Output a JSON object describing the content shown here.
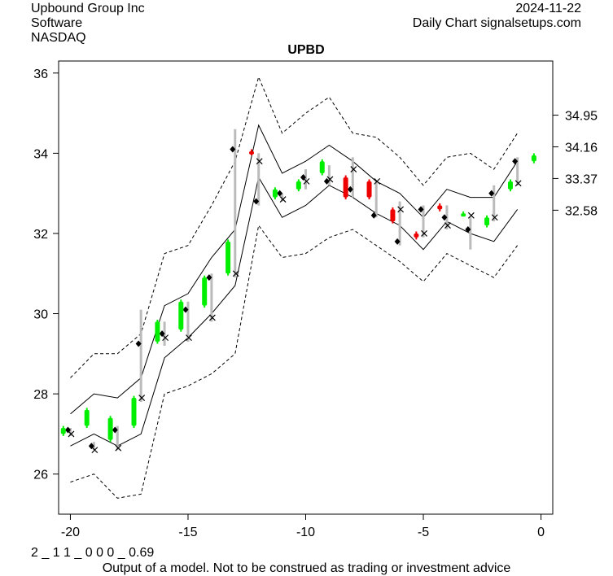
{
  "header": {
    "company": "Upbound Group Inc",
    "sector": "Software",
    "exchange": "NASDAQ",
    "date": "2024-11-22",
    "chart_kind": "Daily Chart signalsetups.com"
  },
  "footer": {
    "code": "2 _ 1 1 _ 0 0 0 _ 0.69",
    "disclaimer": "Output of a model. Not to be construed as trading or investment advice"
  },
  "chart_data": {
    "type": "line",
    "title": "UPBD",
    "xlim": [
      -20.5,
      0.5
    ],
    "ylim": [
      25.0,
      36.3
    ],
    "x_ticks": [
      -20,
      -15,
      -10,
      -5,
      0
    ],
    "y_ticks_left": [
      26,
      28,
      30,
      32,
      34,
      36
    ],
    "y_ticks_right": [
      34.95,
      34.16,
      33.37,
      32.58
    ],
    "colors": {
      "up": "#00ee00",
      "down": "#ee0000",
      "range": "#bbbbbb",
      "band": "#000000"
    },
    "bands": {
      "x": [
        -20,
        -19,
        -18,
        -17,
        -16,
        -15,
        -14,
        -13,
        -12,
        -11,
        -10,
        -9,
        -8,
        -7,
        -6,
        -5,
        -4,
        -3,
        -2,
        -1
      ],
      "upper_outer": [
        28.4,
        29.0,
        29.0,
        29.5,
        31.5,
        31.7,
        32.7,
        33.8,
        35.9,
        34.5,
        35.0,
        35.4,
        34.5,
        34.4,
        33.9,
        33.2,
        33.9,
        34.0,
        33.6,
        34.5
      ],
      "upper_inner": [
        27.5,
        28.0,
        27.9,
        28.4,
        30.2,
        30.5,
        31.4,
        32.1,
        34.7,
        33.5,
        33.8,
        34.2,
        33.8,
        33.3,
        33.0,
        32.4,
        33.1,
        32.9,
        32.9,
        33.8
      ],
      "lower_inner": [
        26.7,
        27.0,
        26.7,
        27.0,
        28.9,
        29.4,
        30.0,
        30.7,
        33.4,
        32.4,
        32.7,
        33.2,
        32.9,
        32.5,
        32.2,
        31.6,
        32.3,
        32.0,
        31.8,
        32.6
      ],
      "lower_outer": [
        25.8,
        26.0,
        25.4,
        25.5,
        28.0,
        28.2,
        28.5,
        29.0,
        32.2,
        31.4,
        31.5,
        31.9,
        32.1,
        31.7,
        31.3,
        30.8,
        31.5,
        31.2,
        30.9,
        31.7
      ]
    },
    "bars": [
      {
        "x": -20.3,
        "o": 27.0,
        "c": 27.15,
        "h": 27.2,
        "l": 26.95
      },
      {
        "x": -19.3,
        "o": 27.2,
        "c": 27.6,
        "h": 27.65,
        "l": 27.15
      },
      {
        "x": -18.3,
        "o": 26.85,
        "c": 27.4,
        "h": 27.45,
        "l": 26.8
      },
      {
        "x": -17.3,
        "o": 27.2,
        "c": 27.9,
        "h": 27.95,
        "l": 27.15
      },
      {
        "x": -16.3,
        "o": 29.3,
        "c": 29.8,
        "h": 29.85,
        "l": 29.25
      },
      {
        "x": -15.3,
        "o": 29.6,
        "c": 30.3,
        "h": 30.35,
        "l": 29.55
      },
      {
        "x": -14.3,
        "o": 30.2,
        "c": 30.9,
        "h": 30.95,
        "l": 30.15
      },
      {
        "x": -13.3,
        "o": 31.0,
        "c": 31.8,
        "h": 31.85,
        "l": 30.95
      },
      {
        "x": -12.3,
        "o": 34.05,
        "c": 34.0,
        "h": 34.1,
        "l": 33.95
      },
      {
        "x": -11.3,
        "o": 32.9,
        "c": 33.1,
        "h": 33.15,
        "l": 32.85
      },
      {
        "x": -10.3,
        "o": 33.1,
        "c": 33.3,
        "h": 33.35,
        "l": 33.05
      },
      {
        "x": -9.3,
        "o": 33.5,
        "c": 33.8,
        "h": 33.85,
        "l": 33.45
      },
      {
        "x": -8.3,
        "o": 33.4,
        "c": 32.9,
        "h": 33.45,
        "l": 32.85
      },
      {
        "x": -7.3,
        "o": 33.3,
        "c": 32.9,
        "h": 33.35,
        "l": 32.85
      },
      {
        "x": -6.3,
        "o": 32.6,
        "c": 32.3,
        "h": 32.65,
        "l": 32.25
      },
      {
        "x": -5.3,
        "o": 32.0,
        "c": 31.9,
        "h": 32.05,
        "l": 31.85
      },
      {
        "x": -4.3,
        "o": 32.7,
        "c": 32.6,
        "h": 32.75,
        "l": 32.55
      },
      {
        "x": -3.3,
        "o": 32.5,
        "c": 32.5,
        "h": 32.55,
        "l": 32.45
      },
      {
        "x": -2.3,
        "o": 32.2,
        "c": 32.4,
        "h": 32.45,
        "l": 32.15
      },
      {
        "x": -1.3,
        "o": 33.1,
        "c": 33.3,
        "h": 33.35,
        "l": 33.05
      },
      {
        "x": -0.3,
        "o": 33.8,
        "c": 33.95,
        "h": 34.0,
        "l": 33.75
      }
    ],
    "ranges": [
      {
        "x": -20,
        "h": 27.15,
        "l": 26.95,
        "d": 27.1,
        "m": 27.0
      },
      {
        "x": -19,
        "h": 26.8,
        "l": 26.6,
        "d": 26.7,
        "m": 26.6
      },
      {
        "x": -18,
        "h": 27.2,
        "l": 26.6,
        "d": 27.1,
        "m": 26.65
      },
      {
        "x": -17,
        "h": 30.1,
        "l": 27.8,
        "d": 29.25,
        "m": 27.9
      },
      {
        "x": -16,
        "h": 29.8,
        "l": 29.2,
        "d": 29.5,
        "m": 29.4
      },
      {
        "x": -15,
        "h": 30.3,
        "l": 29.3,
        "d": 30.1,
        "m": 29.4
      },
      {
        "x": -14,
        "h": 31.0,
        "l": 29.8,
        "d": 30.9,
        "m": 29.9
      },
      {
        "x": -13,
        "h": 34.6,
        "l": 30.9,
        "d": 34.1,
        "m": 31.0
      },
      {
        "x": -12,
        "h": 34.0,
        "l": 32.7,
        "d": 32.8,
        "m": 33.8
      },
      {
        "x": -11,
        "h": 33.0,
        "l": 32.8,
        "d": 33.0,
        "m": 32.85
      },
      {
        "x": -10,
        "h": 33.6,
        "l": 33.1,
        "d": 33.4,
        "m": 33.3
      },
      {
        "x": -9,
        "h": 33.7,
        "l": 33.2,
        "d": 33.3,
        "m": 33.35
      },
      {
        "x": -8,
        "h": 33.9,
        "l": 32.9,
        "d": 33.1,
        "m": 33.6
      },
      {
        "x": -7,
        "h": 33.3,
        "l": 32.4,
        "d": 32.45,
        "m": 33.3
      },
      {
        "x": -6,
        "h": 32.8,
        "l": 31.7,
        "d": 31.8,
        "m": 32.6
      },
      {
        "x": -5,
        "h": 32.7,
        "l": 31.9,
        "d": 32.6,
        "m": 32.0
      },
      {
        "x": -4,
        "h": 32.7,
        "l": 32.1,
        "d": 32.4,
        "m": 32.2
      },
      {
        "x": -3,
        "h": 32.4,
        "l": 31.6,
        "d": 32.1,
        "m": 32.45
      },
      {
        "x": -2,
        "h": 33.2,
        "l": 32.3,
        "d": 33.0,
        "m": 32.4
      },
      {
        "x": -1,
        "h": 33.9,
        "l": 33.2,
        "d": 33.8,
        "m": 33.25
      }
    ]
  }
}
